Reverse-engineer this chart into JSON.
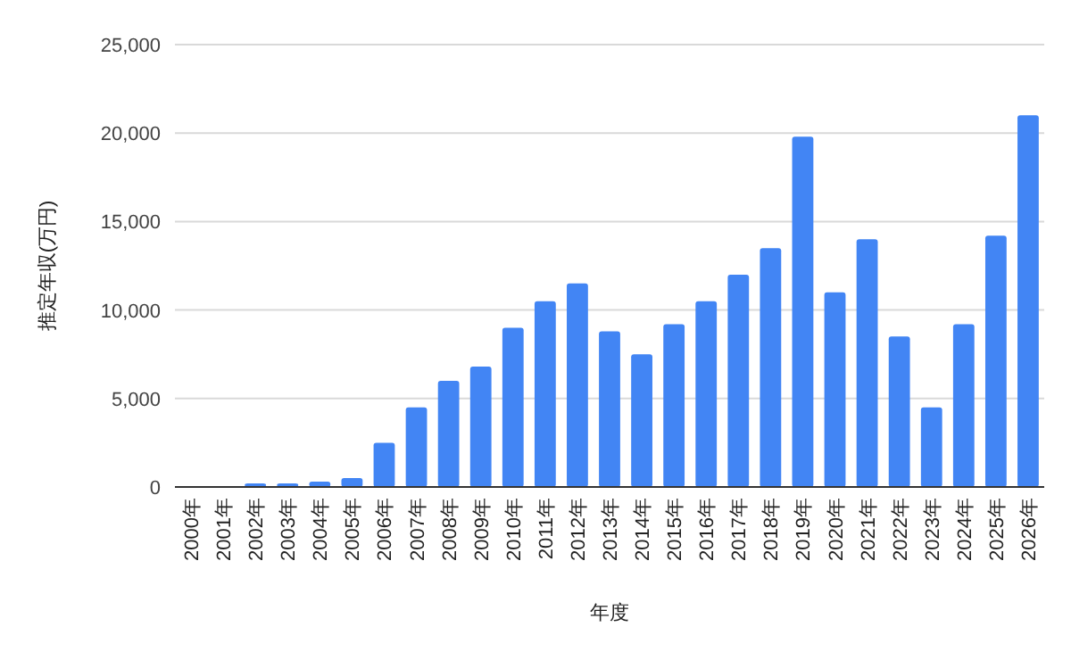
{
  "chart_data": {
    "type": "bar",
    "xlabel": "年度",
    "ylabel": "推定年収(万円)",
    "categories": [
      "2000年",
      "2001年",
      "2002年",
      "2003年",
      "2004年",
      "2005年",
      "2006年",
      "2007年",
      "2008年",
      "2009年",
      "2010年",
      "2011年",
      "2012年",
      "2013年",
      "2014年",
      "2015年",
      "2016年",
      "2017年",
      "2018年",
      "2019年",
      "2020年",
      "2021年",
      "2022年",
      "2023年",
      "2024年",
      "2025年",
      "2026年"
    ],
    "values": [
      0,
      0,
      200,
      200,
      300,
      500,
      2500,
      4500,
      6000,
      6800,
      9000,
      10500,
      11500,
      8800,
      7500,
      9200,
      10500,
      12000,
      13500,
      19800,
      11000,
      14000,
      8500,
      4500,
      9200,
      14200,
      21000
    ],
    "color": "#4285f4",
    "ylim": [
      0,
      25000
    ],
    "yticks": [
      {
        "value": 0,
        "label": "0"
      },
      {
        "value": 5000,
        "label": "5,000"
      },
      {
        "value": 10000,
        "label": "10,000"
      },
      {
        "value": 15000,
        "label": "15,000"
      },
      {
        "value": 20000,
        "label": "20,000"
      },
      {
        "value": 25000,
        "label": "25,000"
      }
    ],
    "grid": "y"
  }
}
